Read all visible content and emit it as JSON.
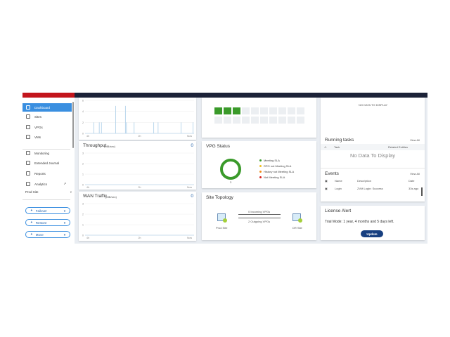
{
  "topbar": {
    "brand_color": "#c3151c",
    "bar_color": "#1c2238"
  },
  "sidebar": {
    "items": [
      {
        "label": "Dashboard",
        "icon": "dashboard-icon",
        "active": true
      },
      {
        "label": "Sites",
        "icon": "sites-icon"
      },
      {
        "label": "VPGs",
        "icon": "vpgs-icon"
      },
      {
        "label": "VMs",
        "icon": "vms-icon"
      },
      {
        "label": "Monitoring",
        "icon": "monitor-icon"
      },
      {
        "label": "Extended Journal",
        "icon": "journal-icon"
      },
      {
        "label": "Reports",
        "icon": "reports-icon"
      },
      {
        "label": "Analytics",
        "icon": "analytics-icon"
      }
    ],
    "site_select": "Prod Site",
    "actions": [
      {
        "label": "Failover",
        "icon": "failover-icon"
      },
      {
        "label": "Restore",
        "icon": "restore-icon"
      },
      {
        "label": "Move",
        "icon": "move-icon"
      }
    ]
  },
  "charts": {
    "x_ticks": [
      "4h",
      "2h",
      "Now"
    ],
    "chart_data": [
      {
        "type": "bar",
        "y_ticks": [
          "6",
          "4",
          "2",
          "0"
        ],
        "ylim": [
          0,
          6
        ],
        "x": [
          0.08,
          0.13,
          0.15,
          0.28,
          0.37,
          0.38,
          0.45,
          0.63,
          0.67,
          0.88,
          0.99
        ],
        "values": [
          2,
          2,
          2,
          5,
          5,
          2,
          2,
          2,
          2,
          2,
          2
        ]
      },
      {
        "type": "line",
        "title": "Throughput",
        "unit": "(MB/sec)",
        "value": "0",
        "y_ticks": [
          "3",
          "2",
          "1",
          "0"
        ],
        "ylim": [
          0,
          3
        ]
      },
      {
        "type": "line",
        "title": "WAN Traffic",
        "unit": "(MB/sec)",
        "value": "0",
        "y_ticks": [
          "3",
          "2",
          "1",
          "0"
        ],
        "ylim": [
          0,
          3
        ]
      }
    ]
  },
  "grid": {
    "filled": 3,
    "total": 20,
    "fill_color": "#3a9a2a"
  },
  "vpg_status": {
    "title": "VPG Status",
    "count": "3",
    "legend": [
      {
        "label": "Meeting SLA",
        "color": "#3a9a2a"
      },
      {
        "label": "RPO not Meeting SLA",
        "color": "#f0c020"
      },
      {
        "label": "History not Meeting SLA",
        "color": "#f08c1a"
      },
      {
        "label": "Not Meeting SLA",
        "color": "#d9221c"
      }
    ]
  },
  "topology": {
    "title": "Site Topology",
    "source": "Prod Site",
    "target": "DR Site",
    "incoming": "0 Incoming VPGs",
    "outgoing": "2 Outgoing VPGs"
  },
  "alerts": {
    "empty": "NO DATA TO DISPLAY"
  },
  "running_tasks": {
    "title": "Running tasks",
    "view_all": "View All",
    "col_task": "Task",
    "col_entities": "Related Entities",
    "empty": "No Data To Display"
  },
  "events": {
    "title": "Events",
    "view_all": "View All",
    "cols": [
      "Name",
      "Description",
      "Date"
    ],
    "rows": [
      {
        "name": "Login",
        "description": "ZVM Login: Success",
        "date": "33s ago"
      }
    ]
  },
  "license": {
    "title": "License Alert",
    "text": "Trial Mode: 1 year, 4 months and 5 days left.",
    "button": "Update"
  }
}
